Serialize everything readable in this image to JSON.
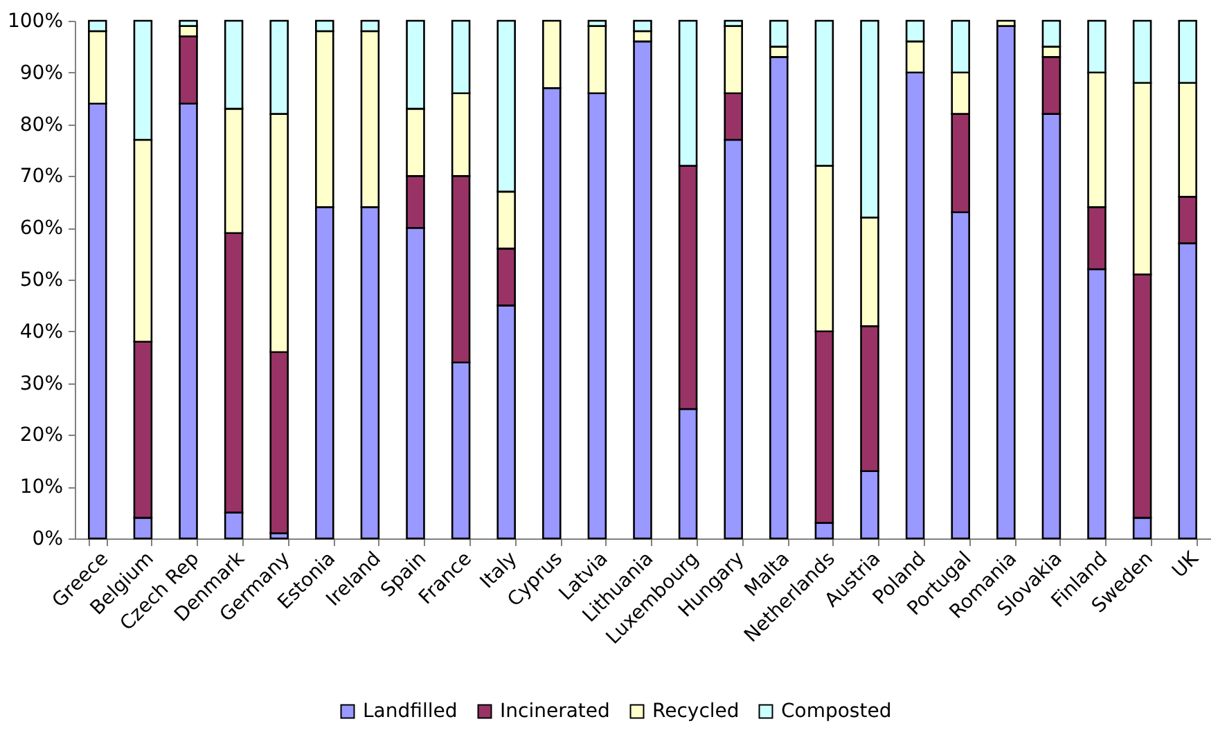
{
  "chart_data": {
    "type": "bar",
    "stacked": true,
    "categories": [
      "Greece",
      "Belgium",
      "Czech Rep",
      "Denmark",
      "Germany",
      "Estonia",
      "Ireland",
      "Spain",
      "France",
      "Italy",
      "Cyprus",
      "Latvia",
      "Lithuania",
      "Luxembourg",
      "Hungary",
      "Malta",
      "Netherlands",
      "Austria",
      "Poland",
      "Portugal",
      "Romania",
      "Slovakia",
      "Finland",
      "Sweden",
      "UK"
    ],
    "series": [
      {
        "name": "Landfilled",
        "color": "#9999ff",
        "values": [
          84,
          4,
          84,
          5,
          1,
          64,
          64,
          60,
          34,
          45,
          87,
          86,
          96,
          25,
          77,
          93,
          3,
          13,
          90,
          63,
          99,
          82,
          52,
          4,
          57
        ]
      },
      {
        "name": "Incinerated",
        "color": "#993366",
        "values": [
          null,
          34,
          13,
          54,
          35,
          null,
          null,
          10,
          36,
          11,
          null,
          null,
          null,
          47,
          9,
          null,
          37,
          28,
          null,
          19,
          null,
          11,
          12,
          47,
          9
        ]
      },
      {
        "name": "Recycled",
        "color": "#ffffcc",
        "values": [
          14,
          39,
          2,
          24,
          46,
          34,
          34,
          13,
          16,
          11,
          13,
          13,
          2,
          null,
          13,
          2,
          32,
          21,
          6,
          8,
          1,
          2,
          26,
          37,
          22
        ]
      },
      {
        "name": "Composted",
        "color": "#ccffff",
        "values": [
          2,
          23,
          1,
          17,
          18,
          2,
          2,
          17,
          14,
          33,
          null,
          1,
          2,
          28,
          1,
          5,
          28,
          38,
          4,
          10,
          null,
          5,
          10,
          12,
          12
        ]
      }
    ],
    "ylim": [
      0,
      100
    ],
    "yticks": [
      {
        "value": 0,
        "label": "0%"
      },
      {
        "value": 10,
        "label": "10%"
      },
      {
        "value": 20,
        "label": "20%"
      },
      {
        "value": 30,
        "label": "30%"
      },
      {
        "value": 40,
        "label": "40%"
      },
      {
        "value": 50,
        "label": "50%"
      },
      {
        "value": 60,
        "label": "60%"
      },
      {
        "value": 70,
        "label": "70%"
      },
      {
        "value": 80,
        "label": "80%"
      },
      {
        "value": 90,
        "label": "90%"
      },
      {
        "value": 100,
        "label": "100%"
      }
    ],
    "grid": false,
    "legend": "bottom"
  }
}
